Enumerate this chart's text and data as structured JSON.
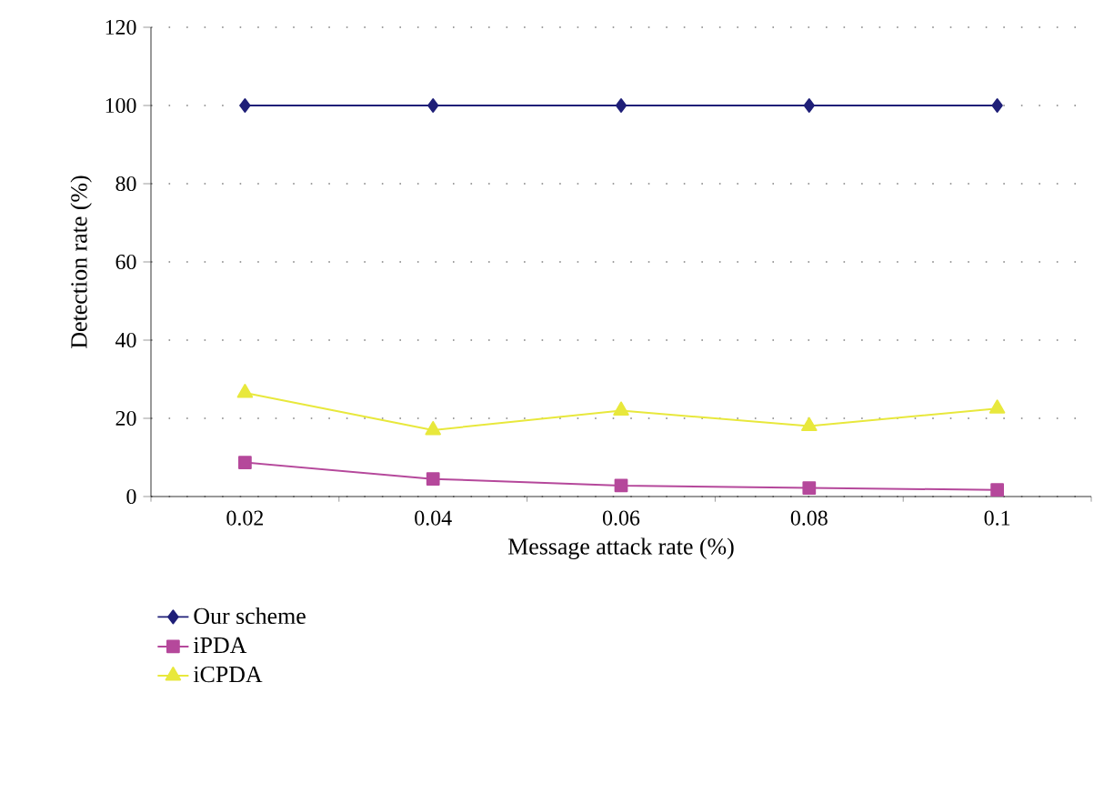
{
  "chart_data": {
    "type": "line",
    "xlabel": "Message attack rate (%)",
    "ylabel": "Detection rate (%)",
    "categories": [
      "0.02",
      "0.04",
      "0.06",
      "0.08",
      "0.1"
    ],
    "ylim": [
      0,
      120
    ],
    "yticks": [
      0,
      20,
      40,
      60,
      80,
      100,
      120
    ],
    "grid": "y",
    "legend": "bottom",
    "line_style": "solid",
    "series": [
      {
        "name": "Our scheme",
        "color": "#1f1f78",
        "marker": "diamond",
        "values": [
          100,
          100,
          100,
          100,
          100
        ]
      },
      {
        "name": "iPDA",
        "color": "#b5489b",
        "marker": "square",
        "values": [
          8.7,
          4.5,
          2.8,
          2.2,
          1.7
        ]
      },
      {
        "name": "iCPDA",
        "color": "#e8e83c",
        "marker": "triangle",
        "values": [
          26.5,
          17,
          22,
          18,
          22.5
        ]
      }
    ]
  }
}
